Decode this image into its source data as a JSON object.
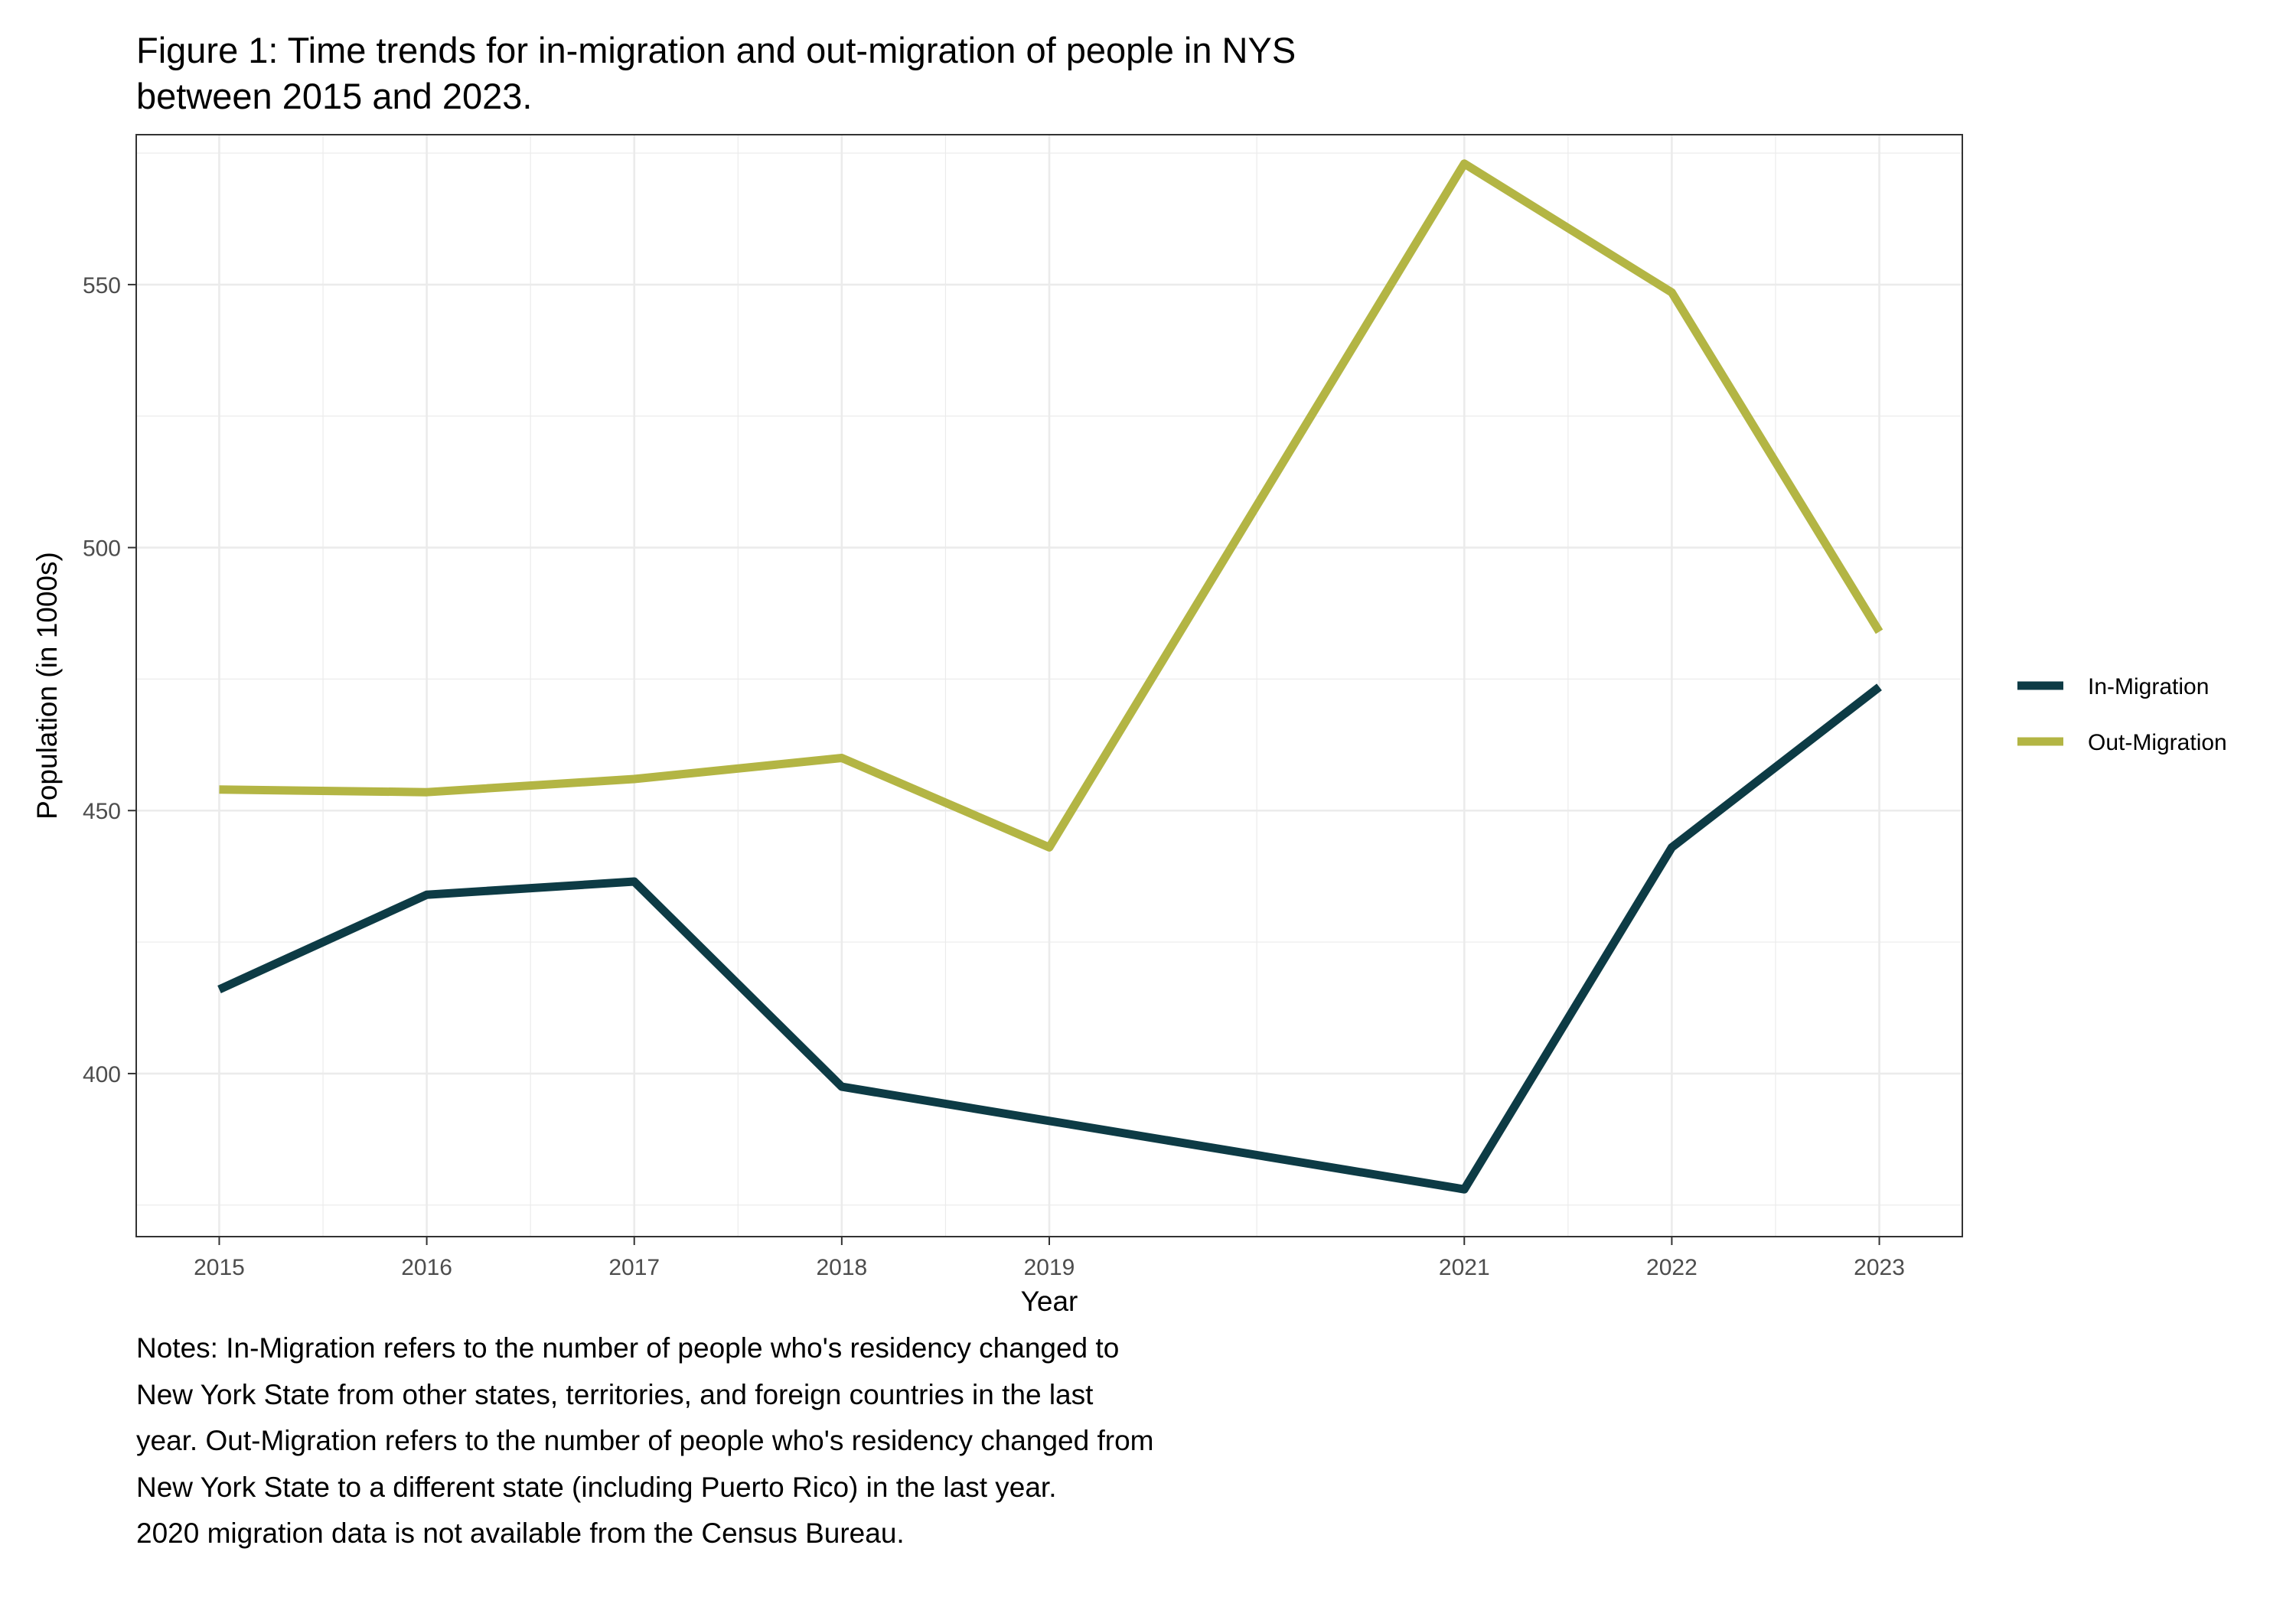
{
  "figure": {
    "title_lines": [
      "Figure 1: Time trends for in-migration and out-migration of people in NYS",
      "between 2015 and 2023."
    ],
    "notes_lines": [
      "Notes: In-Migration refers to the number of people who's residency changed to",
      "New York State from other states, territories, and foreign countries in the last",
      "year. Out-Migration refers to the number of people who's residency changed from",
      "New York State to a different state (including Puerto Rico) in the last year.",
      "2020 migration data is not available from the Census Bureau."
    ]
  },
  "chart_data": {
    "type": "line",
    "title": "Figure 1: Time trends for in-migration and out-migration of people in NYS between 2015 and 2023.",
    "xlabel": "Year",
    "ylabel": "Population (in 1000s)",
    "x": [
      2015,
      2016,
      2017,
      2018,
      2019,
      2021,
      2022,
      2023
    ],
    "x_ticks": [
      2015,
      2016,
      2017,
      2018,
      2019,
      2021,
      2022,
      2023
    ],
    "y_ticks": [
      400,
      450,
      500,
      550
    ],
    "xlim": [
      2014.6,
      2023.4
    ],
    "ylim": [
      369,
      578.5
    ],
    "grid": true,
    "legend_position": "right",
    "series": [
      {
        "name": "In-Migration",
        "color": "#0d3b45",
        "values": [
          416,
          434,
          436.5,
          397.5,
          391,
          378,
          443,
          473.5
        ]
      },
      {
        "name": "Out-Migration",
        "color": "#b3b544",
        "values": [
          454,
          453.5,
          456,
          460,
          443,
          573,
          548.5,
          484
        ]
      }
    ]
  }
}
